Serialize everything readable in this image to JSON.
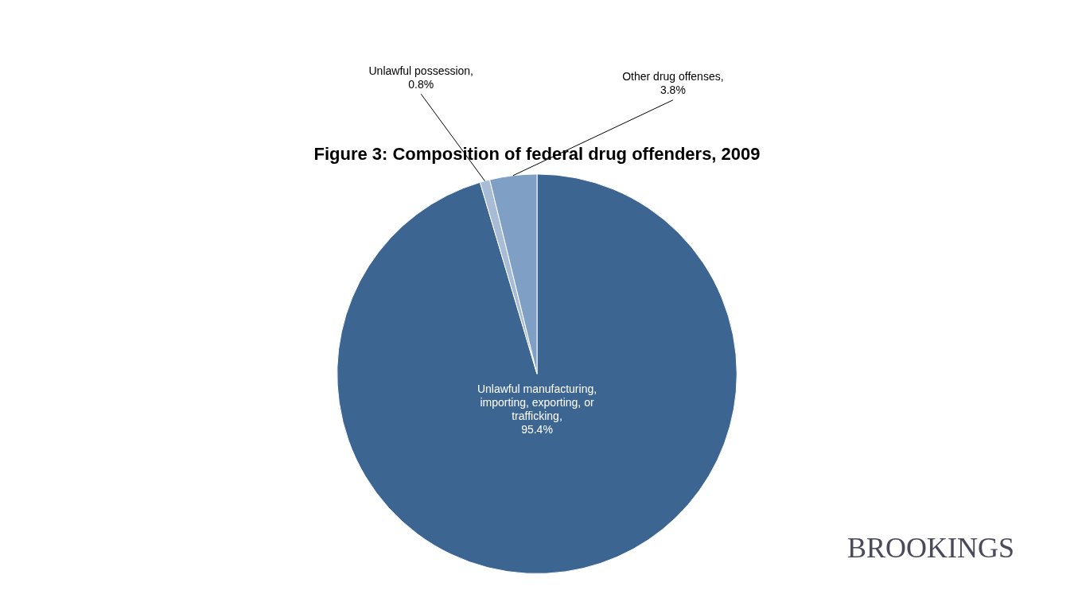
{
  "chart_data": {
    "type": "pie",
    "title": "Figure 3: Composition of federal drug offenders, 2009",
    "categories": [
      "Unlawful manufacturing,\nimporting, exporting, or\ntrafficking,",
      "Unlawful possession,",
      "Other drug offenses,"
    ],
    "values": [
      95.4,
      0.8,
      3.8
    ],
    "value_labels": [
      "95.4%",
      "0.8%",
      "3.8%"
    ],
    "data_labels": true,
    "colors": [
      "#3d6591",
      "#a8bcd6",
      "#7fa0c4"
    ],
    "annotations": [
      {
        "text": "BROOKINGS",
        "color": "#4a4a5a"
      }
    ]
  }
}
